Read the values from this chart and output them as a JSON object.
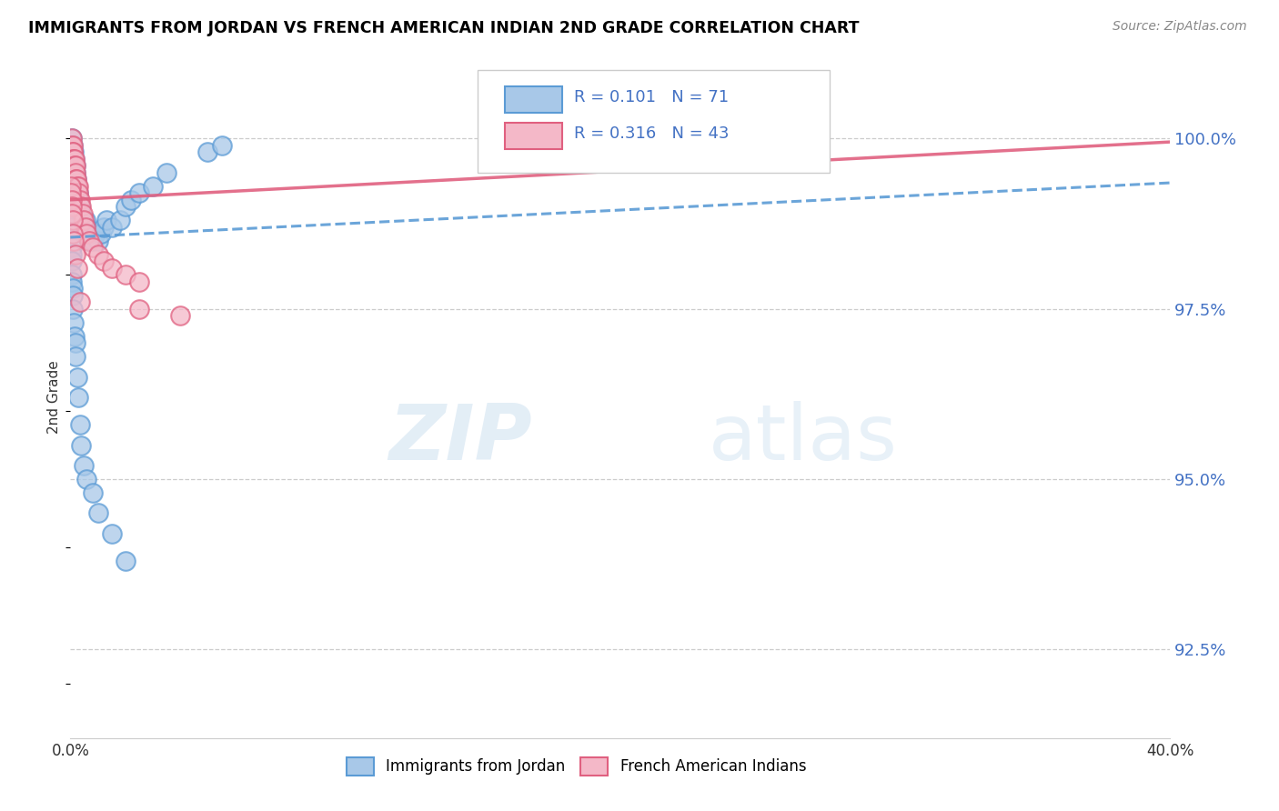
{
  "title": "IMMIGRANTS FROM JORDAN VS FRENCH AMERICAN INDIAN 2ND GRADE CORRELATION CHART",
  "source": "Source: ZipAtlas.com",
  "ylabel": "2nd Grade",
  "y_tick_labels": [
    "100.0%",
    "97.5%",
    "95.0%",
    "92.5%"
  ],
  "y_tick_values": [
    100.0,
    97.5,
    95.0,
    92.5
  ],
  "xlim": [
    0.0,
    40.0
  ],
  "ylim": [
    91.2,
    101.2
  ],
  "legend_label1": "Immigrants from Jordan",
  "legend_label2": "French American Indians",
  "color_blue_fill": "#a8c8e8",
  "color_blue_edge": "#5b9bd5",
  "color_pink_fill": "#f4b8c8",
  "color_pink_edge": "#e06080",
  "color_blue_line": "#5b9bd5",
  "color_pink_line": "#e06080",
  "color_legend_text": "#4472c4",
  "color_ytick": "#4472c4",
  "color_grid": "#cccccc",
  "blue_x": [
    0.05,
    0.05,
    0.05,
    0.05,
    0.05,
    0.08,
    0.08,
    0.1,
    0.1,
    0.12,
    0.12,
    0.15,
    0.15,
    0.18,
    0.18,
    0.2,
    0.2,
    0.22,
    0.25,
    0.28,
    0.3,
    0.35,
    0.4,
    0.45,
    0.5,
    0.55,
    0.6,
    0.65,
    0.7,
    0.8,
    0.9,
    1.0,
    1.1,
    1.2,
    1.3,
    1.5,
    1.8,
    2.0,
    2.2,
    2.5,
    3.0,
    3.5,
    0.02,
    0.02,
    0.03,
    0.03,
    0.04,
    0.04,
    0.05,
    0.06,
    0.07,
    0.07,
    0.08,
    0.09,
    0.1,
    0.12,
    0.15,
    0.18,
    0.2,
    0.25,
    0.3,
    0.35,
    0.4,
    0.5,
    0.6,
    0.8,
    1.0,
    1.5,
    2.0,
    5.0,
    5.5
  ],
  "blue_y": [
    100.0,
    99.9,
    99.8,
    99.7,
    99.6,
    99.9,
    99.8,
    99.7,
    99.5,
    99.8,
    99.6,
    99.7,
    99.4,
    99.6,
    99.3,
    99.5,
    99.2,
    99.4,
    99.3,
    99.2,
    99.1,
    99.0,
    98.9,
    98.8,
    98.7,
    98.8,
    98.7,
    98.6,
    98.5,
    98.5,
    98.6,
    98.5,
    98.6,
    98.7,
    98.8,
    98.7,
    98.8,
    99.0,
    99.1,
    99.2,
    99.3,
    99.5,
    99.2,
    99.0,
    98.9,
    98.7,
    98.6,
    98.4,
    98.3,
    98.2,
    98.0,
    97.9,
    97.8,
    97.7,
    97.5,
    97.3,
    97.1,
    97.0,
    96.8,
    96.5,
    96.2,
    95.8,
    95.5,
    95.2,
    95.0,
    94.8,
    94.5,
    94.2,
    93.8,
    99.8,
    99.9
  ],
  "pink_x": [
    0.05,
    0.05,
    0.08,
    0.08,
    0.1,
    0.1,
    0.12,
    0.15,
    0.15,
    0.18,
    0.2,
    0.2,
    0.22,
    0.25,
    0.28,
    0.3,
    0.35,
    0.4,
    0.45,
    0.5,
    0.55,
    0.6,
    0.7,
    0.8,
    1.0,
    1.2,
    1.5,
    2.0,
    2.5,
    0.02,
    0.03,
    0.04,
    0.05,
    0.06,
    0.08,
    0.1,
    0.12,
    0.18,
    0.25,
    0.35,
    2.5,
    4.0,
    27.0
  ],
  "pink_y": [
    100.0,
    99.9,
    99.9,
    99.8,
    99.8,
    99.7,
    99.7,
    99.7,
    99.6,
    99.6,
    99.5,
    99.4,
    99.4,
    99.3,
    99.3,
    99.2,
    99.1,
    99.0,
    98.9,
    98.8,
    98.7,
    98.6,
    98.5,
    98.4,
    98.3,
    98.2,
    98.1,
    98.0,
    97.9,
    99.3,
    99.2,
    99.1,
    99.0,
    98.9,
    98.8,
    98.6,
    98.5,
    98.3,
    98.1,
    97.6,
    97.5,
    97.4,
    100.0
  ],
  "blue_line_x0": 0.0,
  "blue_line_y0": 98.55,
  "blue_line_x1": 40.0,
  "blue_line_y1": 99.35,
  "pink_line_x0": 0.0,
  "pink_line_y0": 99.1,
  "pink_line_x1": 40.0,
  "pink_line_y1": 99.95
}
